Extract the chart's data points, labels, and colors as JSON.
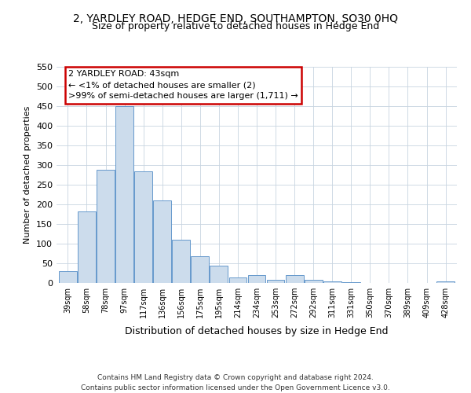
{
  "title": "2, YARDLEY ROAD, HEDGE END, SOUTHAMPTON, SO30 0HQ",
  "subtitle": "Size of property relative to detached houses in Hedge End",
  "xlabel": "Distribution of detached houses by size in Hedge End",
  "ylabel": "Number of detached properties",
  "bar_values": [
    30,
    183,
    287,
    450,
    283,
    210,
    110,
    68,
    45,
    15,
    20,
    8,
    20,
    8,
    5,
    2,
    0,
    0,
    0,
    0,
    5
  ],
  "bar_labels": [
    "39sqm",
    "58sqm",
    "78sqm",
    "97sqm",
    "117sqm",
    "136sqm",
    "156sqm",
    "175sqm",
    "195sqm",
    "214sqm",
    "234sqm",
    "253sqm",
    "272sqm",
    "292sqm",
    "311sqm",
    "331sqm",
    "350sqm",
    "370sqm",
    "389sqm",
    "409sqm",
    "428sqm"
  ],
  "bar_color": "#ccdcec",
  "bar_edge_color": "#6699cc",
  "ylim": [
    0,
    550
  ],
  "yticks": [
    0,
    50,
    100,
    150,
    200,
    250,
    300,
    350,
    400,
    450,
    500,
    550
  ],
  "annotation_text": "2 YARDLEY ROAD: 43sqm\n← <1% of detached houses are smaller (2)\n>99% of semi-detached houses are larger (1,711) →",
  "annotation_box_color": "#cc0000",
  "footer_line1": "Contains HM Land Registry data © Crown copyright and database right 2024.",
  "footer_line2": "Contains public sector information licensed under the Open Government Licence v3.0.",
  "title_fontsize": 10,
  "subtitle_fontsize": 9,
  "xlabel_fontsize": 9,
  "ylabel_fontsize": 8,
  "annotation_fontsize": 8,
  "tick_fontsize": 8,
  "xtick_fontsize": 7
}
